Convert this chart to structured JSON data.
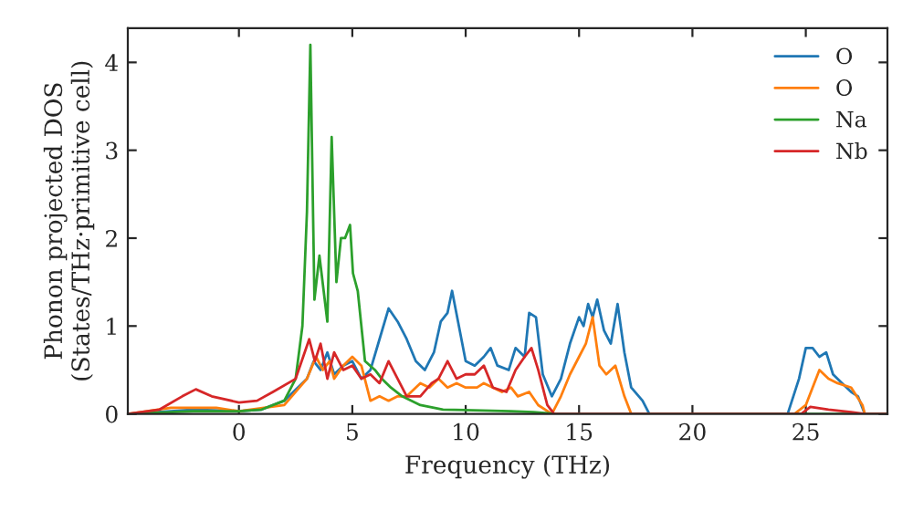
{
  "chart_data": {
    "type": "line",
    "xlabel": "Frequency (THz)",
    "ylabel": "Phonon projected DOS\n(States/THz·primitive cell)",
    "xlim": [
      -4.9,
      28.6
    ],
    "ylim": [
      0,
      4.39
    ],
    "xticks": [
      0,
      5,
      10,
      15,
      20,
      25
    ],
    "yticks": [
      0,
      1,
      2,
      3,
      4
    ],
    "grid": false,
    "legend": "top right",
    "series": [
      {
        "name": "O",
        "color": "#1f77b4",
        "x": [
          -4.9,
          -3,
          -2,
          0,
          1,
          2,
          3,
          3.3,
          3.6,
          3.9,
          4.2,
          4.6,
          5,
          5.4,
          5.8,
          6.2,
          6.6,
          7,
          7.4,
          7.8,
          8.2,
          8.6,
          8.9,
          9.2,
          9.4,
          9.7,
          10,
          10.4,
          10.8,
          11.1,
          11.4,
          11.9,
          12.2,
          12.6,
          12.8,
          13.1,
          13.4,
          13.8,
          14.2,
          14.6,
          15,
          15.2,
          15.4,
          15.6,
          15.8,
          16.1,
          16.4,
          16.7,
          17,
          17.3,
          17.8,
          18.1,
          24.2,
          24.7,
          25.0,
          25.3,
          25.6,
          25.9,
          26.2,
          26.6,
          27.0,
          27.3,
          27.6,
          28.6
        ],
        "values": [
          0,
          0.03,
          0.05,
          0.03,
          0.05,
          0.15,
          0.4,
          0.6,
          0.5,
          0.7,
          0.45,
          0.55,
          0.6,
          0.4,
          0.5,
          0.85,
          1.2,
          1.05,
          0.85,
          0.6,
          0.5,
          0.7,
          1.05,
          1.15,
          1.4,
          1.0,
          0.6,
          0.55,
          0.65,
          0.75,
          0.55,
          0.5,
          0.75,
          0.65,
          1.15,
          1.1,
          0.45,
          0.2,
          0.4,
          0.8,
          1.1,
          1.0,
          1.25,
          1.1,
          1.3,
          0.95,
          0.8,
          1.25,
          0.7,
          0.3,
          0.15,
          0,
          0,
          0.4,
          0.75,
          0.75,
          0.65,
          0.7,
          0.45,
          0.35,
          0.25,
          0.2,
          0,
          0
        ]
      },
      {
        "name": "O",
        "color": "#ff7f0e",
        "x": [
          -4.9,
          -3,
          -1,
          0,
          2,
          3,
          3.4,
          3.7,
          4,
          4.2,
          4.6,
          5,
          5.4,
          5.8,
          6.2,
          6.6,
          7,
          7.4,
          8,
          8.4,
          8.8,
          9.2,
          9.6,
          10,
          10.5,
          10.8,
          11.2,
          11.6,
          12,
          12.3,
          12.8,
          13.2,
          13.8,
          14.2,
          14.6,
          15,
          15.3,
          15.6,
          15.9,
          16.2,
          16.6,
          17,
          17.3,
          24.5,
          25,
          25.6,
          26,
          26.4,
          27,
          27.5,
          27.6,
          28.6
        ],
        "values": [
          0,
          0.07,
          0.07,
          0.03,
          0.1,
          0.4,
          0.65,
          0.5,
          0.6,
          0.4,
          0.55,
          0.65,
          0.55,
          0.15,
          0.2,
          0.15,
          0.2,
          0.2,
          0.35,
          0.3,
          0.4,
          0.3,
          0.35,
          0.3,
          0.3,
          0.35,
          0.3,
          0.25,
          0.3,
          0.2,
          0.25,
          0.1,
          0,
          0.2,
          0.45,
          0.65,
          0.8,
          1.1,
          0.55,
          0.45,
          0.55,
          0.2,
          0,
          0,
          0.1,
          0.5,
          0.4,
          0.35,
          0.3,
          0.1,
          0,
          0
        ]
      },
      {
        "name": "Na",
        "color": "#2ca02c",
        "x": [
          -4.9,
          -2,
          0,
          1,
          2,
          2.5,
          2.8,
          3.0,
          3.15,
          3.33,
          3.55,
          3.9,
          4.09,
          4.3,
          4.5,
          4.68,
          4.9,
          5.03,
          5.24,
          5.56,
          6.0,
          6.3,
          6.7,
          7.2,
          8,
          9,
          12,
          13,
          14,
          28.6
        ],
        "values": [
          0,
          0.03,
          0.03,
          0.05,
          0.15,
          0.4,
          1.0,
          2.3,
          4.2,
          1.3,
          1.8,
          1.05,
          3.15,
          1.5,
          2.0,
          2.0,
          2.15,
          1.6,
          1.4,
          0.6,
          0.5,
          0.4,
          0.3,
          0.2,
          0.1,
          0.05,
          0.03,
          0.02,
          0,
          0
        ]
      },
      {
        "name": "Nb",
        "color": "#d62728",
        "x": [
          -4.9,
          -3.5,
          -2.5,
          -1.9,
          -1.2,
          0,
          0.8,
          1.5,
          2.5,
          3.1,
          3.35,
          3.6,
          3.9,
          4.2,
          4.6,
          5,
          5.4,
          5.8,
          6.2,
          6.6,
          7.0,
          7.4,
          8,
          8.5,
          8.8,
          9.2,
          9.6,
          10,
          10.4,
          10.8,
          11.2,
          11.8,
          12.2,
          12.6,
          12.9,
          13.2,
          13.6,
          13.9,
          24.8,
          25.2,
          26,
          27,
          27.6,
          28.6
        ],
        "values": [
          0,
          0.05,
          0.2,
          0.28,
          0.2,
          0.13,
          0.15,
          0.25,
          0.4,
          0.85,
          0.6,
          0.8,
          0.4,
          0.7,
          0.5,
          0.55,
          0.4,
          0.45,
          0.35,
          0.6,
          0.4,
          0.2,
          0.2,
          0.35,
          0.4,
          0.6,
          0.4,
          0.45,
          0.45,
          0.55,
          0.3,
          0.25,
          0.5,
          0.65,
          0.75,
          0.5,
          0.1,
          0,
          0,
          0.08,
          0.05,
          0.02,
          0,
          0
        ]
      }
    ]
  }
}
